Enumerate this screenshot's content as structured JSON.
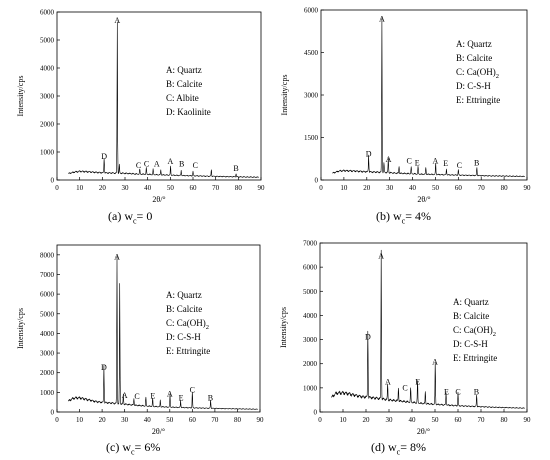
{
  "chart_data": [
    {
      "type": "line",
      "caption": {
        "label": "(a) w",
        "sub": "c",
        "value": "= 0"
      },
      "xlabel": "2θ/°",
      "ylabel": "Intensity/cps",
      "xlim": [
        0,
        90
      ],
      "ylim": [
        0,
        6000
      ],
      "xticks": [
        0,
        10,
        20,
        30,
        40,
        50,
        60,
        70,
        80,
        90
      ],
      "yticks": [
        0,
        1000,
        2000,
        3000,
        4000,
        5000,
        6000
      ],
      "grid": false,
      "legend": {
        "position": "top-right",
        "entries": [
          {
            "text": "A: Quartz"
          },
          {
            "text": "B: Calcite"
          },
          {
            "text": "C: Albite"
          },
          {
            "text": "D: Kaolinite"
          }
        ]
      },
      "baseline": [
        [
          5,
          230
        ],
        [
          8,
          290
        ],
        [
          10,
          310
        ],
        [
          13,
          300
        ],
        [
          16,
          280
        ],
        [
          20,
          260
        ],
        [
          24,
          250
        ],
        [
          30,
          240
        ],
        [
          35,
          215
        ],
        [
          40,
          200
        ],
        [
          45,
          185
        ],
        [
          50,
          175
        ],
        [
          55,
          160
        ],
        [
          60,
          150
        ],
        [
          65,
          140
        ],
        [
          70,
          130
        ],
        [
          75,
          120
        ],
        [
          80,
          112
        ],
        [
          85,
          105
        ],
        [
          89,
          100
        ]
      ],
      "peaks": [
        [
          20.8,
          520
        ],
        [
          26.6,
          5400
        ],
        [
          27.5,
          300
        ],
        [
          36.5,
          180
        ],
        [
          39.4,
          250
        ],
        [
          42.4,
          200
        ],
        [
          45.8,
          180
        ],
        [
          50.1,
          310
        ],
        [
          54.8,
          180
        ],
        [
          60,
          160
        ],
        [
          68.1,
          240
        ],
        [
          79,
          120
        ]
      ],
      "annotations": [
        {
          "text": "A",
          "x": 26.6,
          "y": 5600
        },
        {
          "text": "D",
          "x": 20.8,
          "y": 750
        },
        {
          "text": "C",
          "x": 36,
          "y": 420
        },
        {
          "text": "C",
          "x": 39.5,
          "y": 490
        },
        {
          "text": "A",
          "x": 44,
          "y": 490
        },
        {
          "text": "A",
          "x": 50,
          "y": 570
        },
        {
          "text": "B",
          "x": 55,
          "y": 490
        },
        {
          "text": "C",
          "x": 61,
          "y": 420
        },
        {
          "text": "B",
          "x": 79,
          "y": 320
        }
      ]
    },
    {
      "type": "line",
      "caption": {
        "label": "(b) w",
        "sub": "c",
        "value": "= 4%"
      },
      "xlabel": "2θ/°",
      "ylabel": "Intensity/cps",
      "xlim": [
        0,
        90
      ],
      "ylim": [
        0,
        6000
      ],
      "xticks": [
        0,
        10,
        20,
        30,
        40,
        50,
        60,
        70,
        80,
        90
      ],
      "yticks": [
        0,
        1500,
        3000,
        4500,
        6000
      ],
      "grid": false,
      "legend": {
        "position": "top-right",
        "entries": [
          {
            "text": "A: Quartz"
          },
          {
            "text": "B: Calcite"
          },
          {
            "text": "C: Ca(OH)",
            "sub": "2"
          },
          {
            "text": "D: C-S-H"
          },
          {
            "text": "E: Ettringite"
          }
        ]
      },
      "baseline": [
        [
          5,
          240
        ],
        [
          8,
          320
        ],
        [
          10,
          330
        ],
        [
          14,
          320
        ],
        [
          18,
          300
        ],
        [
          22,
          285
        ],
        [
          28,
          270
        ],
        [
          33,
          240
        ],
        [
          38,
          225
        ],
        [
          44,
          205
        ],
        [
          50,
          195
        ],
        [
          56,
          180
        ],
        [
          62,
          170
        ],
        [
          68,
          160
        ],
        [
          74,
          145
        ],
        [
          80,
          140
        ],
        [
          86,
          130
        ],
        [
          89,
          125
        ]
      ],
      "peaks": [
        [
          20.8,
          600
        ],
        [
          26.6,
          5450
        ],
        [
          27.5,
          320
        ],
        [
          29.4,
          500
        ],
        [
          34.1,
          250
        ],
        [
          39.4,
          250
        ],
        [
          42.4,
          260
        ],
        [
          45.8,
          240
        ],
        [
          50.1,
          380
        ],
        [
          54.8,
          200
        ],
        [
          60,
          190
        ],
        [
          68.1,
          290
        ]
      ],
      "annotations": [
        {
          "text": "A",
          "x": 26.6,
          "y": 5600
        },
        {
          "text": "D",
          "x": 20.8,
          "y": 830
        },
        {
          "text": "A",
          "x": 29.5,
          "y": 640
        },
        {
          "text": "C",
          "x": 38.5,
          "y": 580
        },
        {
          "text": "E",
          "x": 42,
          "y": 520
        },
        {
          "text": "A",
          "x": 50,
          "y": 580
        },
        {
          "text": "E",
          "x": 54.5,
          "y": 500
        },
        {
          "text": "C",
          "x": 60.5,
          "y": 420
        },
        {
          "text": "B",
          "x": 68,
          "y": 510
        }
      ]
    },
    {
      "type": "line",
      "caption": {
        "label": "(c) w",
        "sub": "c",
        "value": "= 6%"
      },
      "xlabel": "2θ/°",
      "ylabel": "Intensity/cps",
      "xlim": [
        0,
        90
      ],
      "ylim": [
        0,
        8500
      ],
      "xticks": [
        0,
        10,
        20,
        30,
        40,
        50,
        60,
        70,
        80,
        90
      ],
      "yticks": [
        0,
        1000,
        2000,
        3000,
        4000,
        5000,
        6000,
        7000,
        8000
      ],
      "grid": false,
      "legend": {
        "position": "top-right",
        "entries": [
          {
            "text": "A: Quartz"
          },
          {
            "text": "B: Calcite"
          },
          {
            "text": "C: Ca(OH)",
            "sub": "2"
          },
          {
            "text": "D: C-S-H"
          },
          {
            "text": "E: Ettringite"
          }
        ]
      },
      "baseline": [
        [
          5,
          550
        ],
        [
          7,
          690
        ],
        [
          9,
          730
        ],
        [
          11,
          700
        ],
        [
          14,
          620
        ],
        [
          17,
          540
        ],
        [
          20,
          490
        ],
        [
          25,
          450
        ],
        [
          30,
          400
        ],
        [
          35,
          340
        ],
        [
          40,
          300
        ],
        [
          45,
          270
        ],
        [
          50,
          250
        ],
        [
          55,
          230
        ],
        [
          60,
          210
        ],
        [
          65,
          200
        ],
        [
          70,
          185
        ],
        [
          75,
          170
        ],
        [
          80,
          160
        ],
        [
          85,
          150
        ],
        [
          89,
          140
        ]
      ],
      "peaks": [
        [
          20.8,
          1900
        ],
        [
          26.6,
          7500
        ],
        [
          27.8,
          6100
        ],
        [
          29.4,
          500
        ],
        [
          34.1,
          350
        ],
        [
          39.4,
          450
        ],
        [
          42.4,
          400
        ],
        [
          45.8,
          350
        ],
        [
          50.1,
          650
        ],
        [
          54.8,
          350
        ],
        [
          60,
          800
        ],
        [
          68.1,
          420
        ]
      ],
      "annotations": [
        {
          "text": "A",
          "x": 26.6,
          "y": 7750
        },
        {
          "text": "D",
          "x": 20.8,
          "y": 2150
        },
        {
          "text": "A",
          "x": 30,
          "y": 720
        },
        {
          "text": "C",
          "x": 35.5,
          "y": 650
        },
        {
          "text": "E",
          "x": 42.5,
          "y": 680
        },
        {
          "text": "A",
          "x": 50,
          "y": 780
        },
        {
          "text": "E",
          "x": 55,
          "y": 580
        },
        {
          "text": "C",
          "x": 60,
          "y": 1000
        },
        {
          "text": "B",
          "x": 68,
          "y": 580
        }
      ]
    },
    {
      "type": "line",
      "caption": {
        "label": "(d) w",
        "sub": "c",
        "value": "= 8%"
      },
      "xlabel": "2θ/°",
      "ylabel": "Intensity/cps",
      "xlim": [
        0,
        90
      ],
      "ylim": [
        0,
        7000
      ],
      "xticks": [
        0,
        10,
        20,
        30,
        40,
        50,
        60,
        70,
        80,
        90
      ],
      "yticks": [
        0,
        1000,
        2000,
        3000,
        4000,
        5000,
        6000,
        7000
      ],
      "grid": false,
      "legend": {
        "position": "top-right",
        "entries": [
          {
            "text": "A: Quartz"
          },
          {
            "text": "B: Calcite"
          },
          {
            "text": "C: Ca(OH)",
            "sub": "2"
          },
          {
            "text": "D: C-S-H"
          },
          {
            "text": "E: Ettringite"
          }
        ]
      },
      "baseline": [
        [
          5,
          600
        ],
        [
          7,
          780
        ],
        [
          9,
          800
        ],
        [
          12,
          770
        ],
        [
          15,
          700
        ],
        [
          18,
          640
        ],
        [
          22,
          600
        ],
        [
          26,
          560
        ],
        [
          30,
          500
        ],
        [
          35,
          450
        ],
        [
          40,
          400
        ],
        [
          45,
          350
        ],
        [
          50,
          320
        ],
        [
          55,
          290
        ],
        [
          60,
          260
        ],
        [
          65,
          240
        ],
        [
          70,
          220
        ],
        [
          75,
          200
        ],
        [
          80,
          185
        ],
        [
          85,
          170
        ],
        [
          89,
          160
        ]
      ],
      "peaks": [
        [
          20.8,
          2750
        ],
        [
          26.6,
          6150
        ],
        [
          29.4,
          650
        ],
        [
          34.1,
          550
        ],
        [
          39.4,
          600
        ],
        [
          42.4,
          900
        ],
        [
          45.8,
          500
        ],
        [
          50.1,
          1700
        ],
        [
          54.8,
          500
        ],
        [
          60,
          550
        ],
        [
          68.1,
          480
        ]
      ],
      "annotations": [
        {
          "text": "A",
          "x": 26.6,
          "y": 6350
        },
        {
          "text": "D",
          "x": 20.8,
          "y": 3000
        },
        {
          "text": "A",
          "x": 29.5,
          "y": 1130
        },
        {
          "text": "C",
          "x": 37,
          "y": 900
        },
        {
          "text": "E",
          "x": 42.5,
          "y": 1130
        },
        {
          "text": "A",
          "x": 50,
          "y": 1970
        },
        {
          "text": "E",
          "x": 55,
          "y": 720
        },
        {
          "text": "C",
          "x": 60,
          "y": 720
        },
        {
          "text": "B",
          "x": 68,
          "y": 720
        }
      ]
    }
  ]
}
